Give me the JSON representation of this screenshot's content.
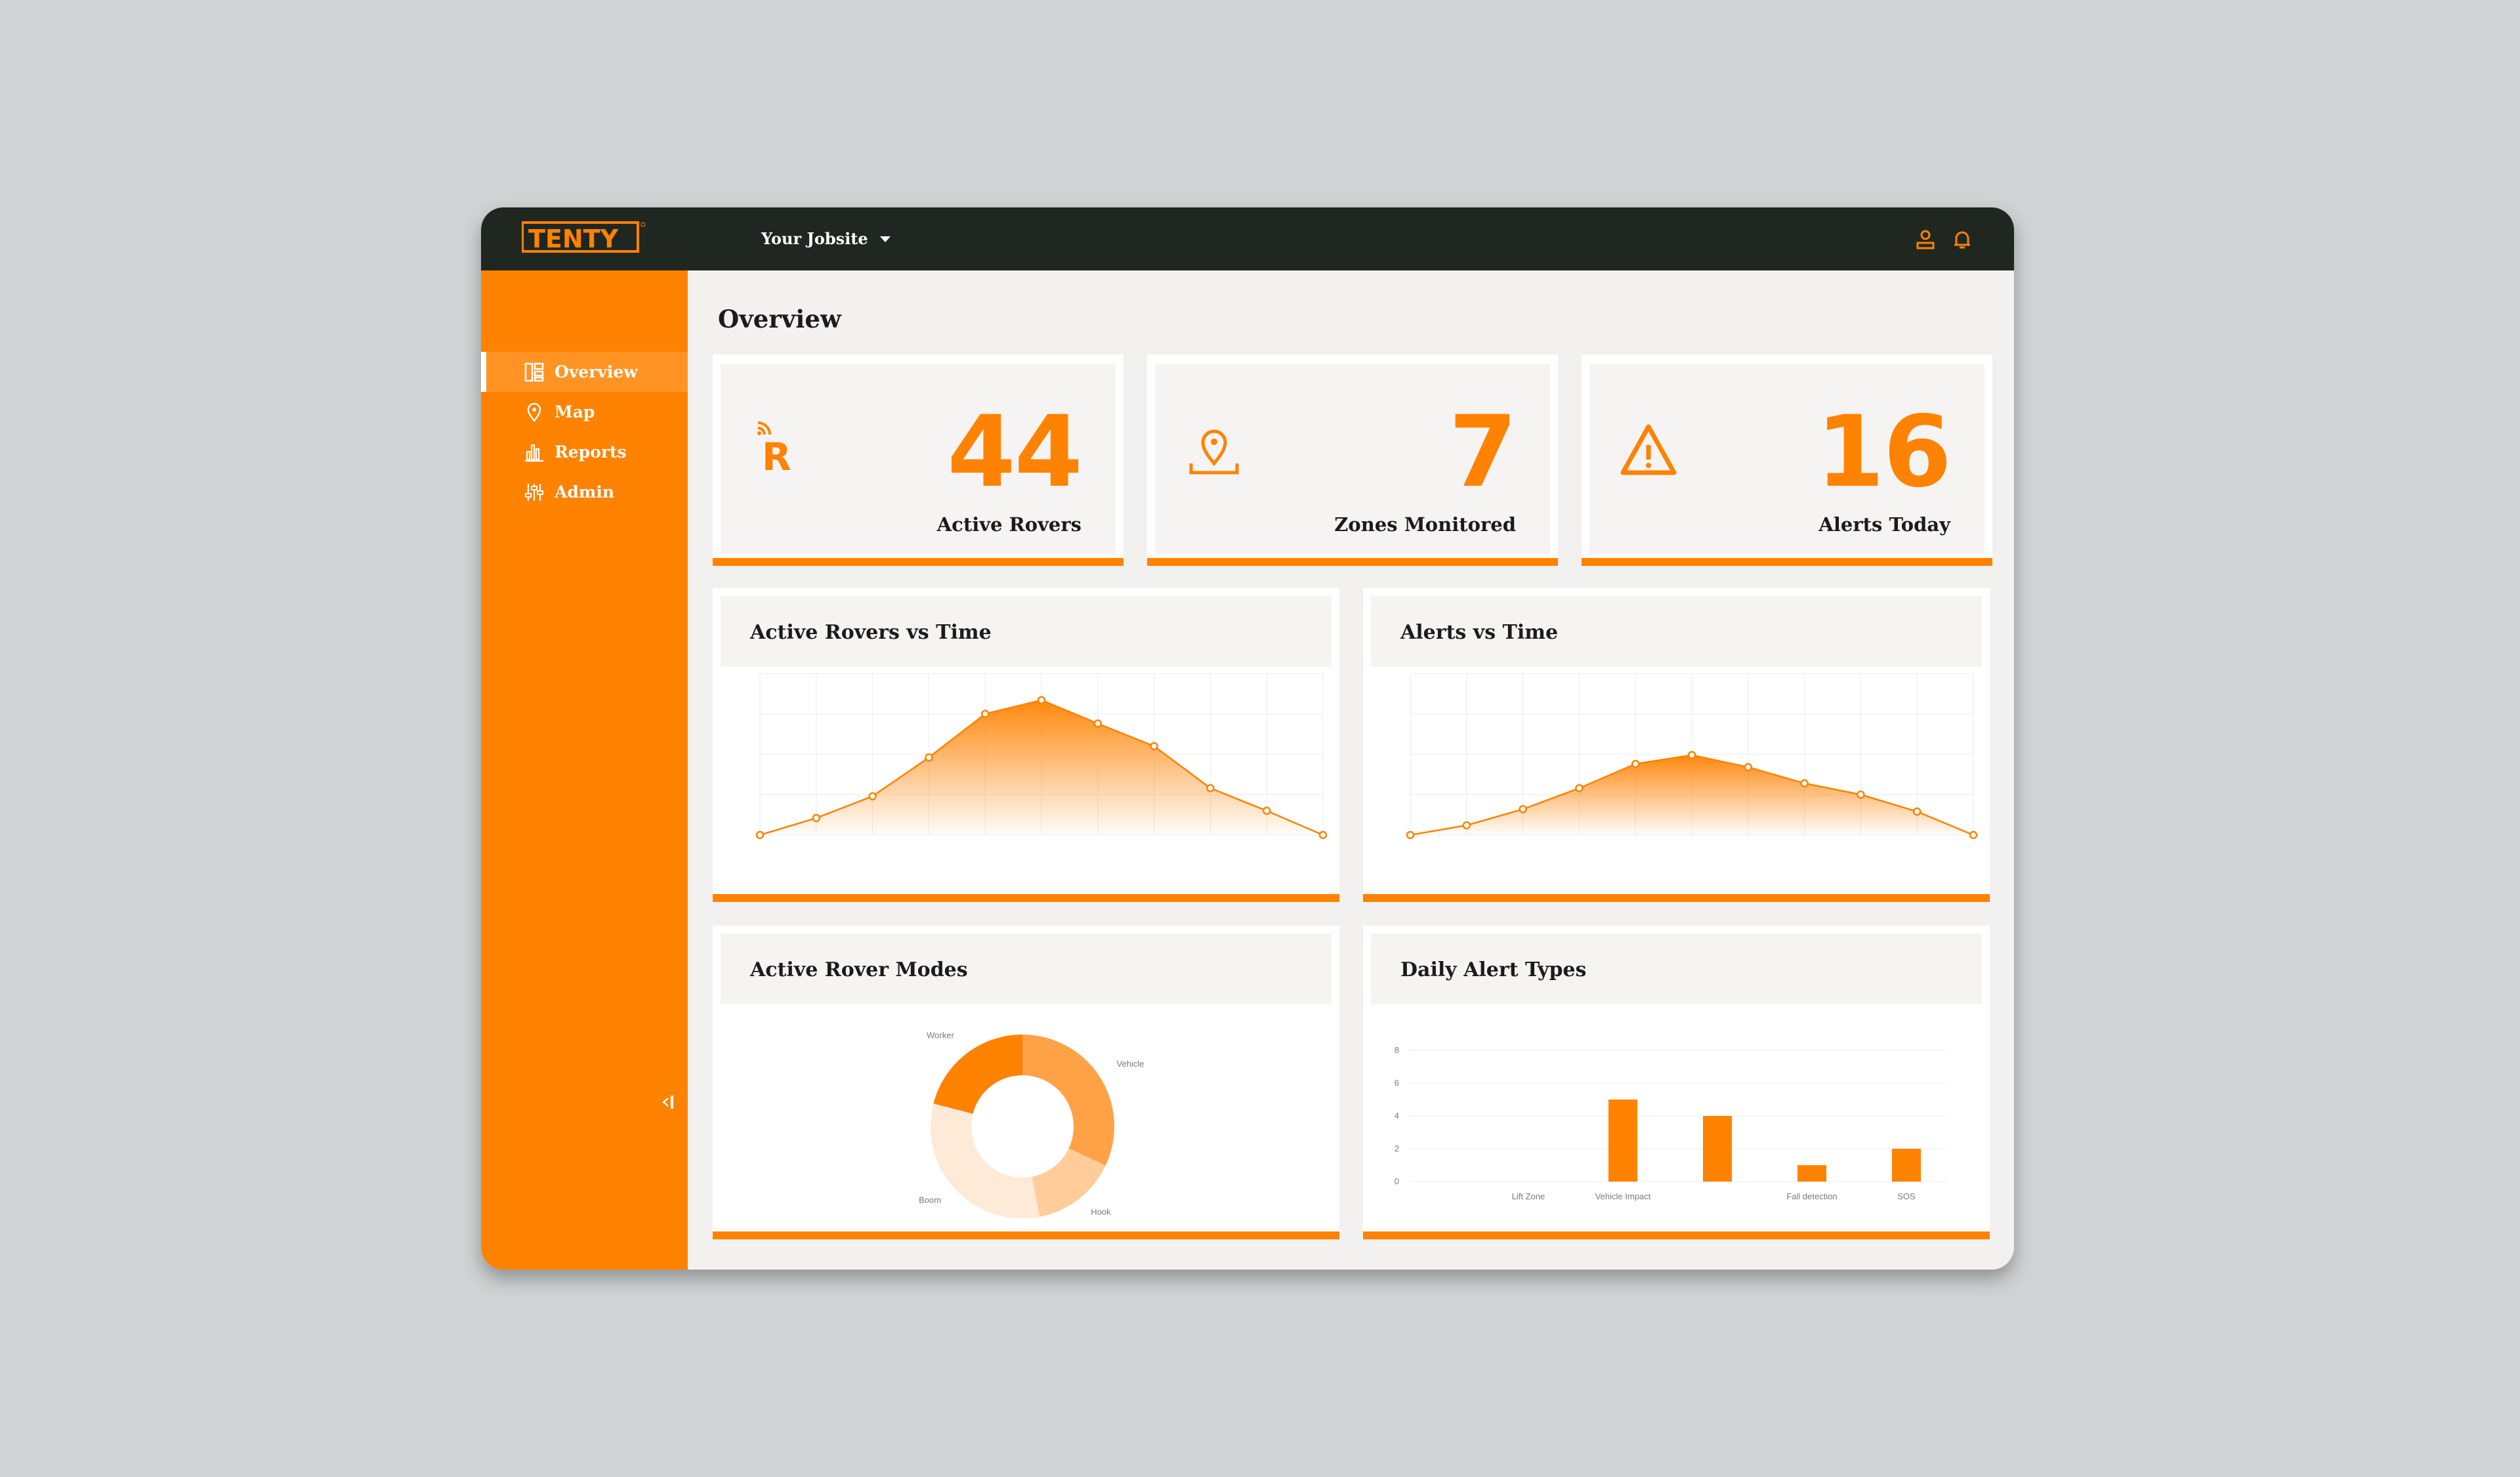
{
  "app": {
    "brand": "TENTY"
  },
  "header": {
    "jobsite_label": "Your Jobsite"
  },
  "sidebar": {
    "items": [
      {
        "label": "Overview",
        "icon": "dashboard-icon",
        "active": true
      },
      {
        "label": "Map",
        "icon": "map-pin-icon",
        "active": false
      },
      {
        "label": "Reports",
        "icon": "bar-chart-icon",
        "active": false
      },
      {
        "label": "Admin",
        "icon": "sliders-icon",
        "active": false
      }
    ]
  },
  "page": {
    "title": "Overview"
  },
  "stats": [
    {
      "value": "44",
      "label": "Active Rovers",
      "icon": "rover-icon"
    },
    {
      "value": "7",
      "label": "Zones Monitored",
      "icon": "zone-pin-icon"
    },
    {
      "value": "16",
      "label": "Alerts Today",
      "icon": "warning-icon"
    }
  ],
  "colors": {
    "accent": "#ff8200",
    "topbar": "#202721",
    "page_bg": "#f2f1ef"
  },
  "cards": {
    "rovers_time": {
      "title": "Active Rovers vs Time"
    },
    "alerts_time": {
      "title": "Alerts vs Time"
    },
    "rover_modes": {
      "title": "Active Rover Modes"
    },
    "alert_types": {
      "title": "Daily Alert Types"
    }
  },
  "chart_data": [
    {
      "type": "area",
      "title": "Active Rovers vs Time",
      "x": [
        "",
        "",
        "",
        "",
        "",
        "",
        "",
        "",
        "",
        "",
        ""
      ],
      "y_ticks": [
        "",
        "",
        "",
        "",
        ""
      ],
      "ylim": [
        0,
        20
      ],
      "values": [
        0,
        2.1,
        4.8,
        9.6,
        15,
        16.7,
        13.8,
        11,
        5.8,
        3,
        0
      ],
      "grid": true
    },
    {
      "type": "area",
      "title": "Alerts vs Time",
      "x": [
        "",
        "",
        "",
        "",
        "",
        "",
        "",
        "",
        "",
        "",
        ""
      ],
      "y_ticks": [
        "",
        "",
        "",
        "",
        ""
      ],
      "ylim": [
        0,
        20
      ],
      "values": [
        0,
        1.2,
        3.2,
        5.8,
        8.8,
        9.9,
        8.4,
        6.4,
        5,
        2.9,
        0
      ],
      "grid": true
    },
    {
      "type": "pie",
      "title": "Active Rover Modes",
      "slices": [
        {
          "label": "Vehicle",
          "value": 32,
          "color": "#ffa245"
        },
        {
          "label": "Hook",
          "value": 15,
          "color": "#ffcc9a"
        },
        {
          "label": "Boom",
          "value": 32,
          "color": "#ffe9d7"
        },
        {
          "label": "Worker",
          "value": 21,
          "color": "#ff8200"
        }
      ]
    },
    {
      "type": "bar",
      "title": "Daily Alert Types",
      "categories": [
        "Lift Zone",
        "Vehicle Impact",
        "",
        "Fall detection",
        "SOS"
      ],
      "values": [
        0,
        5,
        4,
        1,
        2
      ],
      "y_ticks": [
        "0",
        "2",
        "4",
        "6",
        "8"
      ],
      "ylim": [
        0,
        8
      ],
      "grid": true
    }
  ]
}
